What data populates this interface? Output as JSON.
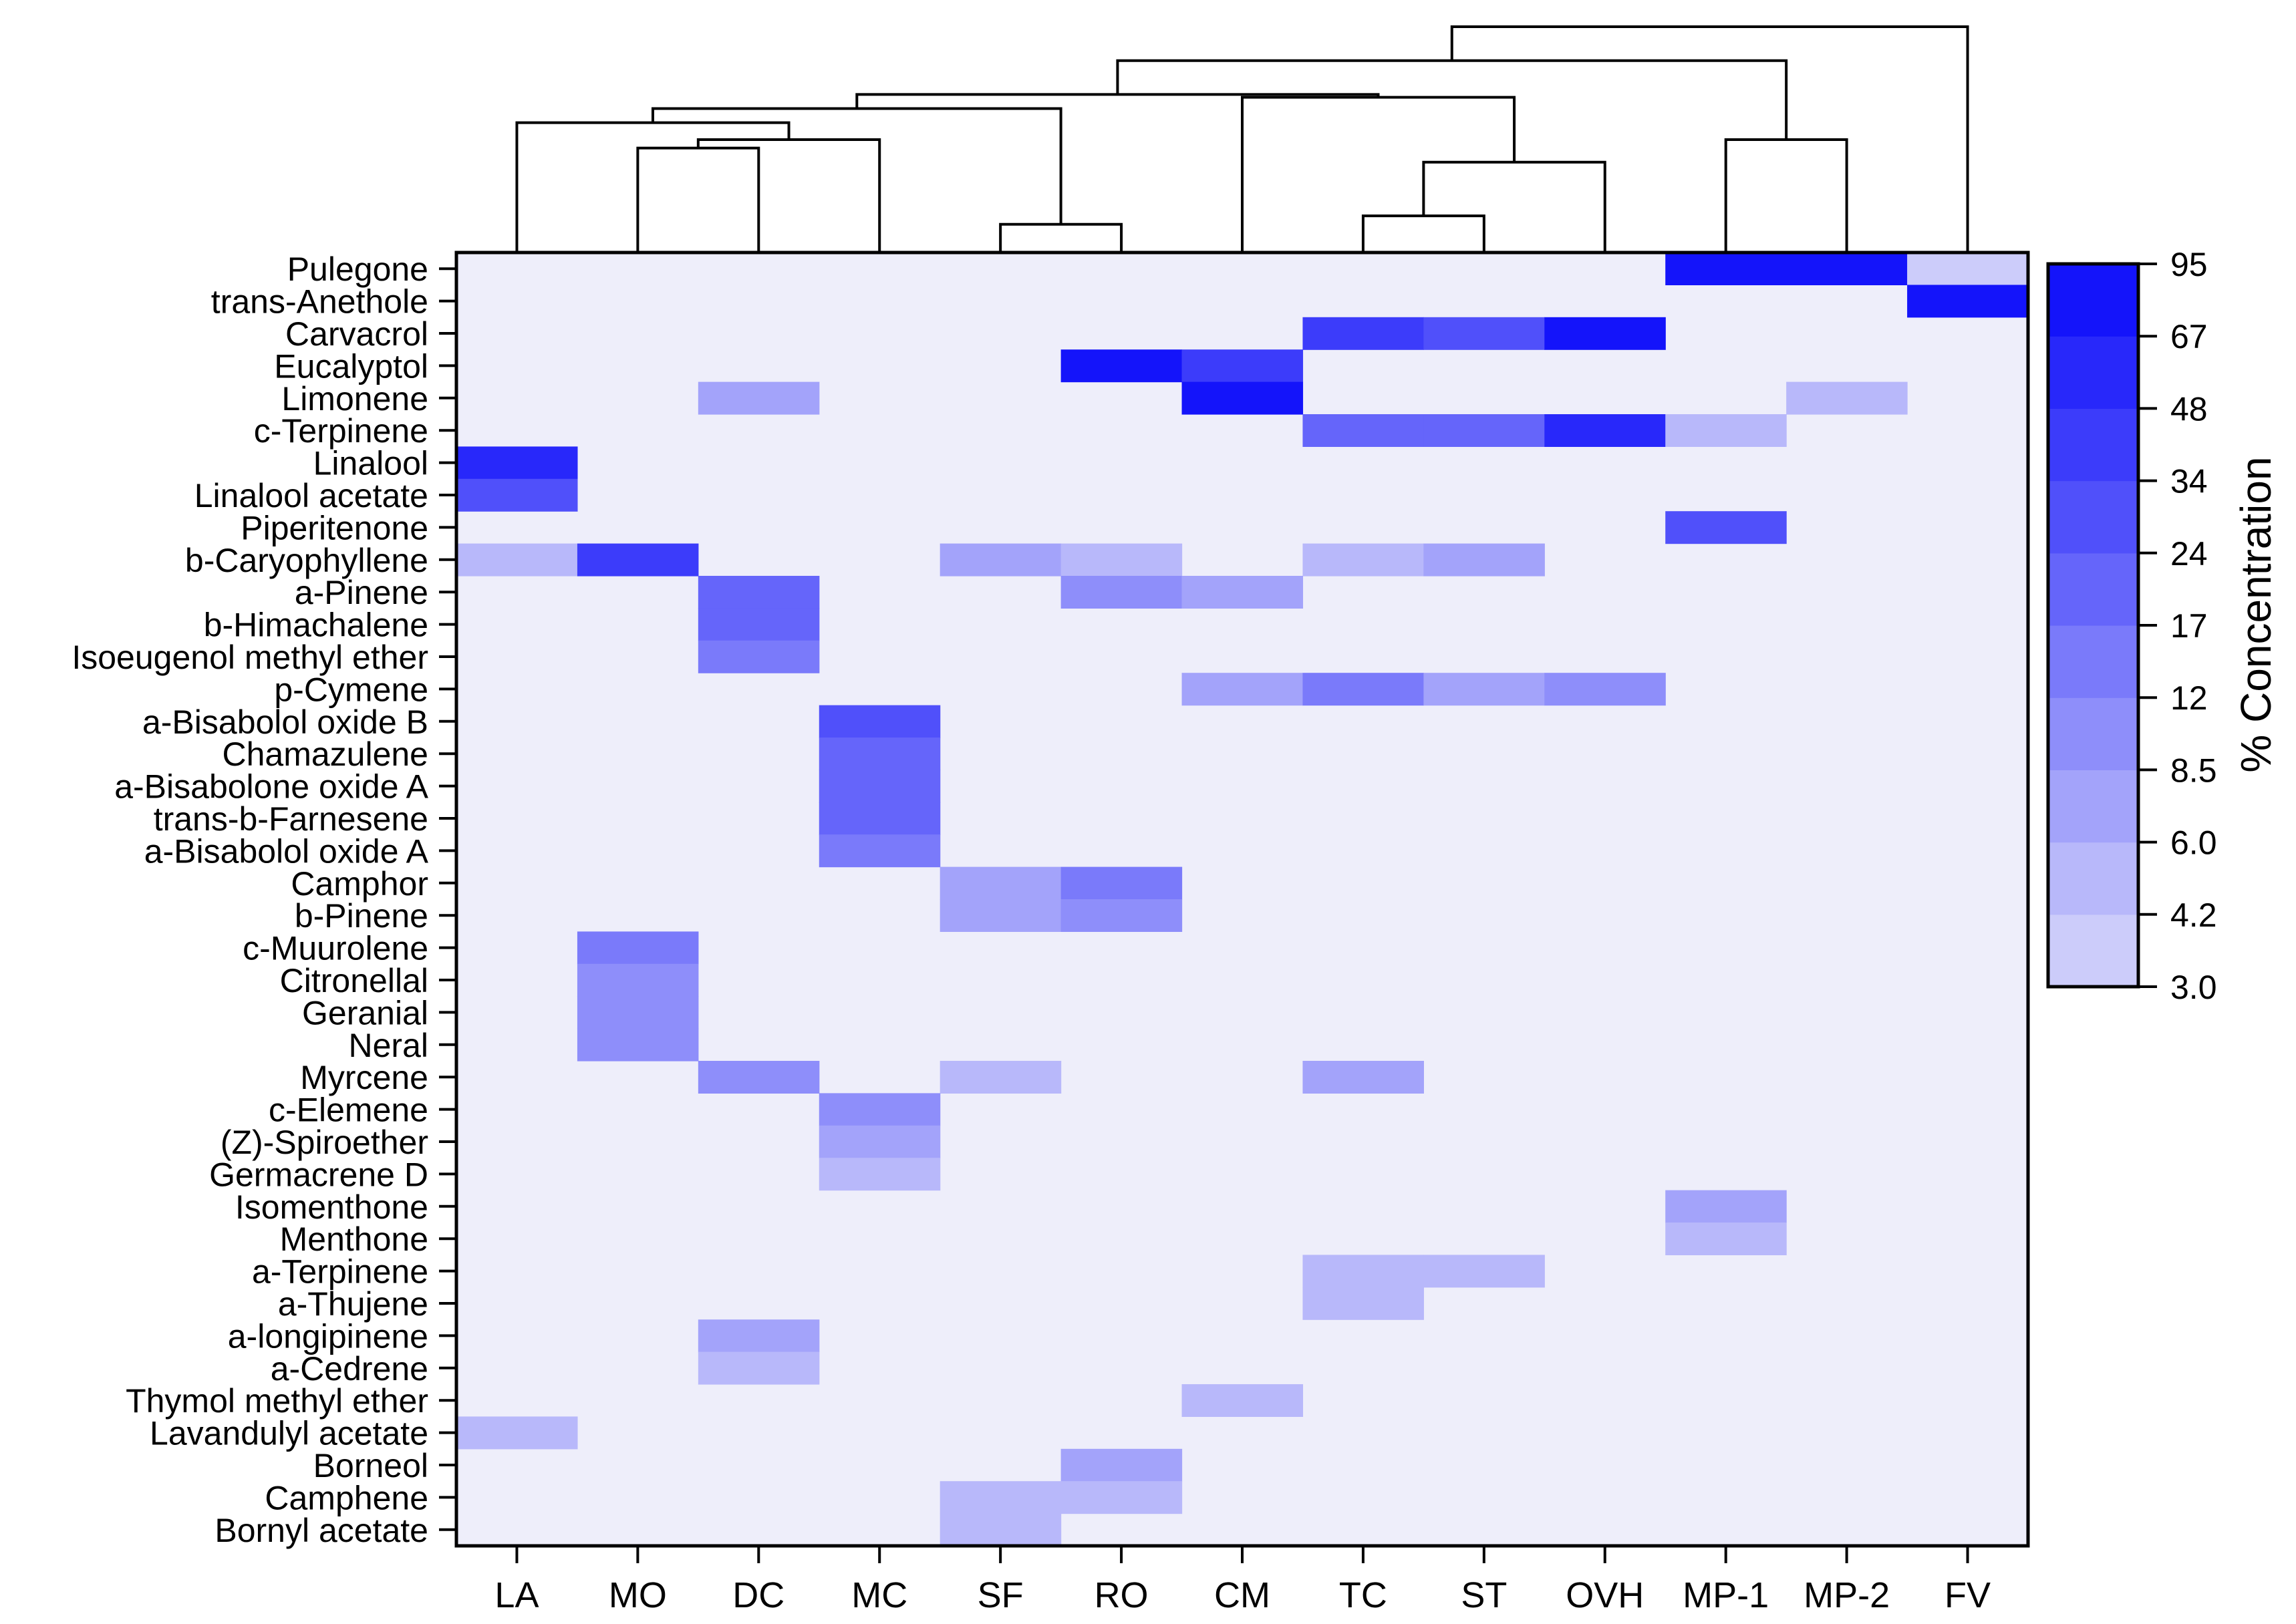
{
  "chart_data": {
    "type": "heatmap",
    "title": "",
    "x_categories": [
      "LA",
      "MO",
      "DC",
      "MC",
      "SF",
      "RO",
      "CM",
      "TC",
      "ST",
      "OVH",
      "MP-1",
      "MP-2",
      "FV"
    ],
    "y_categories": [
      "Pulegone",
      "trans-Anethole",
      "Carvacrol",
      "Eucalyptol",
      "Limonene",
      "c-Terpinene",
      "Linalool",
      "Linalool acetate",
      "Piperitenone",
      "b-Caryophyllene",
      "a-Pinene",
      "b-Himachalene",
      "Isoeugenol methyl ether",
      "p-Cymene",
      "a-Bisabolol oxide B",
      "Chamazulene",
      "a-Bisabolone oxide A",
      "trans-b-Farnesene",
      "a-Bisabolol oxide A",
      "Camphor",
      "b-Pinene",
      "c-Muurolene",
      "Citronellal",
      "Geranial",
      "Neral",
      "Myrcene",
      "c-Elemene",
      "(Z)-Spiroether",
      "Germacrene D",
      "Isomenthone",
      "Menthone",
      "a-Terpinene",
      "a-Thujene",
      "a-longipinene",
      "a-Cedrene",
      "Thymol methyl ether",
      "Lavandulyl acetate",
      "Borneol",
      "Camphene",
      "Bornyl acetate"
    ],
    "values_note": "% concentration; 0 = below 3.0 (background)",
    "values": [
      [
        0,
        0,
        0,
        0,
        0,
        0,
        0,
        0,
        0,
        0,
        70,
        72,
        3.5
      ],
      [
        0,
        0,
        0,
        0,
        0,
        0,
        0,
        0,
        0,
        0,
        0,
        0,
        80
      ],
      [
        0,
        0,
        0,
        0,
        0,
        0,
        0,
        38,
        30,
        80,
        0,
        0,
        0
      ],
      [
        0,
        0,
        0,
        0,
        0,
        70,
        35,
        0,
        0,
        0,
        0,
        0,
        0
      ],
      [
        0,
        0,
        7,
        0,
        0,
        0,
        80,
        0,
        0,
        0,
        0,
        4.2,
        0
      ],
      [
        0,
        0,
        0,
        0,
        0,
        0,
        0,
        20,
        18,
        50,
        5,
        0,
        0
      ],
      [
        60,
        0,
        0,
        0,
        0,
        0,
        0,
        0,
        0,
        0,
        0,
        0,
        0
      ],
      [
        30,
        0,
        0,
        0,
        0,
        0,
        0,
        0,
        0,
        0,
        0,
        0,
        0
      ],
      [
        0,
        0,
        0,
        0,
        0,
        0,
        0,
        0,
        0,
        0,
        30,
        0,
        0
      ],
      [
        4.2,
        40,
        0,
        0,
        7,
        5,
        0,
        4.2,
        8,
        0,
        0,
        0,
        0
      ],
      [
        0,
        0,
        20,
        0,
        0,
        9,
        7,
        0,
        0,
        0,
        0,
        0,
        0
      ],
      [
        0,
        0,
        20,
        0,
        0,
        0,
        0,
        0,
        0,
        0,
        0,
        0,
        0
      ],
      [
        0,
        0,
        15,
        0,
        0,
        0,
        0,
        0,
        0,
        0,
        0,
        0,
        0
      ],
      [
        0,
        0,
        0,
        0,
        0,
        0,
        7,
        12,
        8,
        10,
        0,
        0,
        0
      ],
      [
        0,
        0,
        0,
        24,
        0,
        0,
        0,
        0,
        0,
        0,
        0,
        0,
        0
      ],
      [
        0,
        0,
        0,
        18,
        0,
        0,
        0,
        0,
        0,
        0,
        0,
        0,
        0
      ],
      [
        0,
        0,
        0,
        18,
        0,
        0,
        0,
        0,
        0,
        0,
        0,
        0,
        0
      ],
      [
        0,
        0,
        0,
        18,
        0,
        0,
        0,
        0,
        0,
        0,
        0,
        0,
        0
      ],
      [
        0,
        0,
        0,
        12,
        0,
        0,
        0,
        0,
        0,
        0,
        0,
        0,
        0
      ],
      [
        0,
        0,
        0,
        0,
        8,
        14,
        0,
        0,
        0,
        0,
        0,
        0,
        0
      ],
      [
        0,
        0,
        0,
        0,
        6,
        10,
        0,
        0,
        0,
        0,
        0,
        0,
        0
      ],
      [
        0,
        14,
        0,
        0,
        0,
        0,
        0,
        0,
        0,
        0,
        0,
        0,
        0
      ],
      [
        0,
        11,
        0,
        0,
        0,
        0,
        0,
        0,
        0,
        0,
        0,
        0,
        0
      ],
      [
        0,
        11,
        0,
        0,
        0,
        0,
        0,
        0,
        0,
        0,
        0,
        0,
        0
      ],
      [
        0,
        8.5,
        0,
        0,
        0,
        0,
        0,
        0,
        0,
        0,
        0,
        0,
        0
      ],
      [
        0,
        0,
        9,
        0,
        4.2,
        0,
        0,
        6,
        0,
        0,
        0,
        0,
        0
      ],
      [
        0,
        0,
        0,
        9,
        0,
        0,
        0,
        0,
        0,
        0,
        0,
        0,
        0
      ],
      [
        0,
        0,
        0,
        6,
        0,
        0,
        0,
        0,
        0,
        0,
        0,
        0,
        0
      ],
      [
        0,
        0,
        0,
        4.2,
        0,
        0,
        0,
        0,
        0,
        0,
        0,
        0,
        0
      ],
      [
        0,
        0,
        0,
        0,
        0,
        0,
        0,
        0,
        0,
        0,
        6,
        0,
        0
      ],
      [
        0,
        0,
        0,
        0,
        0,
        0,
        0,
        0,
        0,
        0,
        4.2,
        0,
        0
      ],
      [
        0,
        0,
        0,
        0,
        0,
        0,
        0,
        4.2,
        4.2,
        0,
        0,
        0,
        0
      ],
      [
        0,
        0,
        0,
        0,
        0,
        0,
        0,
        4.2,
        0,
        0,
        0,
        0,
        0
      ],
      [
        0,
        0,
        6,
        0,
        0,
        0,
        0,
        0,
        0,
        0,
        0,
        0,
        0
      ],
      [
        0,
        0,
        4.2,
        0,
        0,
        0,
        0,
        0,
        0,
        0,
        0,
        0,
        0
      ],
      [
        0,
        0,
        0,
        0,
        0,
        0,
        4.2,
        0,
        0,
        0,
        0,
        0,
        0
      ],
      [
        4.2,
        0,
        0,
        0,
        0,
        0,
        0,
        0,
        0,
        0,
        0,
        0,
        0
      ],
      [
        0,
        0,
        0,
        0,
        0,
        7,
        0,
        0,
        0,
        0,
        0,
        0,
        0
      ],
      [
        0,
        0,
        0,
        0,
        4.2,
        4.2,
        0,
        0,
        0,
        0,
        0,
        0,
        0
      ],
      [
        0,
        0,
        0,
        0,
        4.2,
        0,
        0,
        0,
        0,
        0,
        0,
        0,
        0
      ]
    ],
    "colorbar": {
      "label": "% Concentration",
      "ticks": [
        "95",
        "67",
        "48",
        "34",
        "24",
        "17",
        "12",
        "8.5",
        "6.0",
        "4.2",
        "3.0"
      ],
      "range": [
        3.0,
        95
      ],
      "levels": [
        "#ccccfa",
        "#b8b8fa",
        "#a3a3fa",
        "#8e8efa",
        "#7a7afa",
        "#6565fa",
        "#5050fa",
        "#3c3cfa",
        "#2828fa",
        "#1414fa"
      ],
      "background": "#eeeefa"
    },
    "dendrogram": {
      "leaves": [
        "LA",
        "MO",
        "DC",
        "MC",
        "SF",
        "RO",
        "CM",
        "TC",
        "ST",
        "OVH",
        "MP-1",
        "MP-2",
        "FV"
      ],
      "merges_note": "clusters indexed into leaves; higher height = merged later",
      "merges": [
        {
          "a": "SF",
          "b": "RO",
          "height": 1.0
        },
        {
          "a": "TC",
          "b": "ST",
          "height": 1.3
        },
        {
          "a": "MO",
          "b": "DC",
          "height": 3.7
        },
        {
          "a": "(TC,ST)",
          "b": "OVH",
          "height": 3.2
        },
        {
          "a": "(MO,DC)",
          "b": "MC",
          "height": 4.0
        },
        {
          "a": "MP-1",
          "b": "MP-2",
          "height": 4.0
        },
        {
          "a": "LA",
          "b": "((MO,DC),MC)",
          "height": 4.6
        },
        {
          "a": "(LA,((MO,DC),MC))",
          "b": "(SF,RO)",
          "height": 5.1
        },
        {
          "a": "CM",
          "b": "((TC,ST),OVH)",
          "height": 5.5
        },
        {
          "a": "((LA,((MO,DC),MC)),(SF,RO))",
          "b": "(CM,((TC,ST),OVH))",
          "height": 5.6
        },
        {
          "a": "(...left group...)",
          "b": "(MP-1,MP-2)",
          "height": 6.8
        },
        {
          "a": "(...all but FV...)",
          "b": "FV",
          "height": 8.0
        }
      ]
    }
  }
}
